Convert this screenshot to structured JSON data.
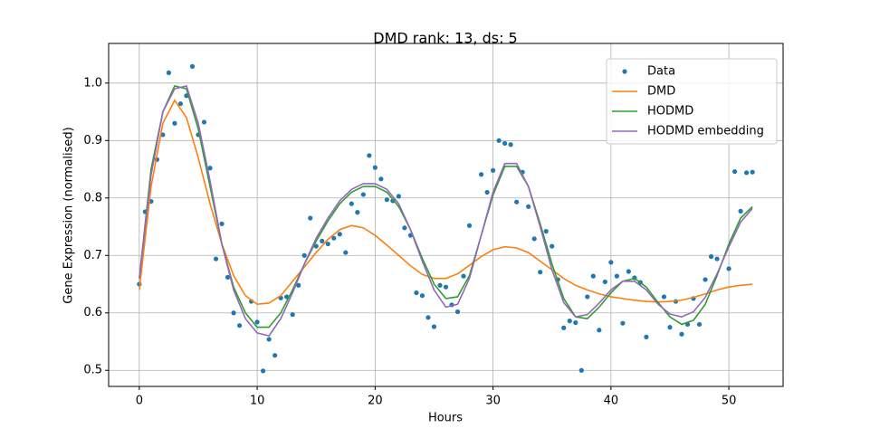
{
  "chart_data": {
    "type": "line",
    "title": "DMD rank: 13, ds: 5",
    "xlabel": "Hours",
    "ylabel": "Gene Expression (normalised)",
    "xlim": [
      -2.6,
      54.6
    ],
    "ylim": [
      0.472,
      1.069
    ],
    "xticks": [
      0,
      10,
      20,
      30,
      40,
      50
    ],
    "yticks": [
      0.5,
      0.6,
      0.7,
      0.8,
      0.9,
      {
        "value": 1,
        "label": "1.0"
      }
    ],
    "grid": true,
    "legend": "upper right",
    "series": [
      {
        "name": "Data",
        "color": "#1f77b4",
        "style": "marker",
        "x": [
          0,
          0.5,
          1,
          1.5,
          2,
          2.5,
          3,
          3.5,
          4,
          4.5,
          5,
          5.5,
          6,
          6.5,
          7,
          7.5,
          8,
          8.5,
          9.5,
          10,
          10.5,
          11,
          11.5,
          12,
          12.5,
          13,
          13.5,
          14,
          14.5,
          15,
          15.5,
          16,
          16.5,
          17,
          17.5,
          18,
          18.5,
          19,
          19.5,
          20,
          20.5,
          21,
          21.5,
          22,
          22.5,
          23,
          23.5,
          24,
          24.5,
          25,
          25.5,
          26,
          26.5,
          27,
          27.5,
          28,
          29,
          29.5,
          30,
          30.5,
          31,
          31.5,
          32,
          32.5,
          33,
          33.5,
          34,
          34.5,
          35,
          35.5,
          36,
          36.5,
          37,
          37.5,
          38,
          38.5,
          39,
          39.5,
          40,
          40.5,
          41,
          41.5,
          42,
          42.5,
          43,
          44.5,
          45,
          45.5,
          46,
          46.5,
          47,
          47.5,
          48,
          48.5,
          49,
          50,
          50.5,
          51,
          51.5,
          52
        ],
        "values": [
          0.65,
          0.776,
          0.794,
          0.867,
          0.91,
          1.018,
          0.93,
          0.964,
          0.978,
          1.029,
          0.91,
          0.932,
          0.852,
          0.694,
          0.755,
          0.662,
          0.6,
          0.578,
          0.62,
          0.584,
          0.499,
          0.554,
          0.526,
          0.626,
          0.628,
          0.597,
          0.648,
          0.7,
          0.765,
          0.716,
          0.725,
          0.72,
          0.73,
          0.737,
          0.705,
          0.79,
          0.775,
          0.806,
          0.874,
          0.853,
          0.833,
          0.797,
          0.795,
          0.803,
          0.748,
          0.735,
          0.635,
          0.63,
          0.592,
          0.576,
          0.648,
          0.645,
          0.614,
          0.602,
          0.664,
          0.752,
          0.841,
          0.81,
          0.848,
          0.9,
          0.895,
          0.893,
          0.793,
          0.845,
          0.785,
          0.729,
          0.671,
          0.742,
          0.716,
          0.658,
          0.574,
          0.586,
          0.583,
          0.5,
          0.628,
          0.664,
          0.57,
          0.654,
          0.688,
          0.664,
          0.582,
          0.672,
          0.661,
          0.653,
          0.558,
          0.628,
          0.575,
          0.62,
          0.563,
          0.58,
          0.625,
          0.58,
          0.658,
          0.698,
          0.694,
          0.677,
          0.846,
          0.777,
          0.844,
          0.845
        ]
      },
      {
        "name": "DMD",
        "color": "#ff7f0e",
        "style": "line",
        "x": [
          0,
          1,
          2,
          3,
          4,
          5,
          6,
          7,
          8,
          9,
          10,
          11,
          12,
          13,
          14,
          15,
          16,
          17,
          18,
          19,
          20,
          21,
          22,
          23,
          24,
          25,
          26,
          27,
          28,
          29,
          30,
          31,
          32,
          33,
          34,
          35,
          36,
          37,
          38,
          39,
          40,
          41,
          42,
          43,
          44,
          45,
          46,
          47,
          48,
          49,
          50,
          51,
          52
        ],
        "values": [
          0.64,
          0.82,
          0.93,
          0.97,
          0.94,
          0.87,
          0.79,
          0.72,
          0.665,
          0.63,
          0.615,
          0.617,
          0.63,
          0.655,
          0.68,
          0.705,
          0.728,
          0.745,
          0.752,
          0.748,
          0.735,
          0.718,
          0.7,
          0.682,
          0.667,
          0.66,
          0.66,
          0.668,
          0.683,
          0.698,
          0.71,
          0.715,
          0.713,
          0.705,
          0.69,
          0.675,
          0.66,
          0.648,
          0.64,
          0.633,
          0.628,
          0.625,
          0.622,
          0.62,
          0.619,
          0.62,
          0.622,
          0.627,
          0.633,
          0.64,
          0.645,
          0.648,
          0.65
        ]
      },
      {
        "name": "HODMD",
        "color": "#2ca02c",
        "style": "line",
        "x": [
          0,
          1,
          2,
          3,
          4,
          5,
          6,
          7,
          8,
          9,
          10,
          11,
          12,
          13,
          14,
          15,
          16,
          17,
          18,
          19,
          20,
          21,
          22,
          23,
          24,
          25,
          26,
          27,
          28,
          29,
          30,
          31,
          32,
          33,
          34,
          35,
          36,
          37,
          38,
          39,
          40,
          41,
          42,
          43,
          44,
          45,
          46,
          47,
          48,
          49,
          50,
          51,
          52
        ],
        "values": [
          0.66,
          0.85,
          0.95,
          0.995,
          0.99,
          0.92,
          0.82,
          0.72,
          0.645,
          0.6,
          0.575,
          0.575,
          0.6,
          0.64,
          0.685,
          0.725,
          0.76,
          0.79,
          0.81,
          0.82,
          0.82,
          0.81,
          0.785,
          0.745,
          0.695,
          0.65,
          0.625,
          0.628,
          0.665,
          0.735,
          0.805,
          0.855,
          0.855,
          0.82,
          0.755,
          0.685,
          0.625,
          0.593,
          0.59,
          0.61,
          0.635,
          0.655,
          0.66,
          0.645,
          0.618,
          0.593,
          0.58,
          0.587,
          0.615,
          0.665,
          0.72,
          0.765,
          0.785
        ]
      },
      {
        "name": "HODMD embedding",
        "color": "#9467bd",
        "style": "line",
        "x": [
          0,
          1,
          2,
          3,
          4,
          5,
          6,
          7,
          8,
          9,
          10,
          11,
          12,
          13,
          14,
          15,
          16,
          17,
          18,
          19,
          20,
          21,
          22,
          23,
          24,
          25,
          26,
          27,
          28,
          29,
          30,
          31,
          32,
          33,
          34,
          35,
          36,
          37,
          38,
          39,
          40,
          41,
          42,
          43,
          44,
          45,
          46,
          47,
          48,
          49,
          50,
          51,
          52
        ],
        "values": [
          0.66,
          0.84,
          0.95,
          0.99,
          0.995,
          0.93,
          0.83,
          0.72,
          0.64,
          0.59,
          0.565,
          0.56,
          0.59,
          0.635,
          0.685,
          0.73,
          0.765,
          0.795,
          0.815,
          0.825,
          0.825,
          0.815,
          0.79,
          0.745,
          0.69,
          0.64,
          0.61,
          0.615,
          0.66,
          0.735,
          0.81,
          0.86,
          0.86,
          0.82,
          0.75,
          0.675,
          0.618,
          0.593,
          0.597,
          0.617,
          0.64,
          0.655,
          0.655,
          0.64,
          0.615,
          0.598,
          0.593,
          0.602,
          0.627,
          0.668,
          0.715,
          0.758,
          0.782
        ]
      }
    ]
  }
}
